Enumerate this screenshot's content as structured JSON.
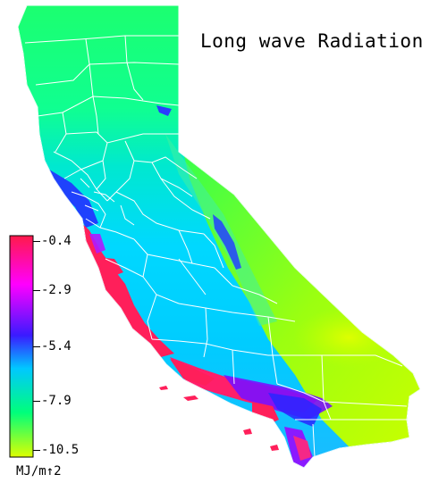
{
  "title": "Long wave Radiation",
  "legend": {
    "unit": "MJ/m↑2",
    "ticks": [
      "-0.4",
      "-2.9",
      "-5.4",
      "-7.9",
      "-10.5"
    ],
    "range": [
      -10.5,
      -0.4
    ],
    "colors_top_to_bottom": [
      "#ff1a4a",
      "#ff00ff",
      "#3a1aff",
      "#00c8ff",
      "#00ff7a",
      "#ddff00"
    ]
  },
  "map": {
    "region": "California",
    "boundaries": "county lines",
    "boundary_color": "#ffffff",
    "background_color": "#ffffff"
  }
}
